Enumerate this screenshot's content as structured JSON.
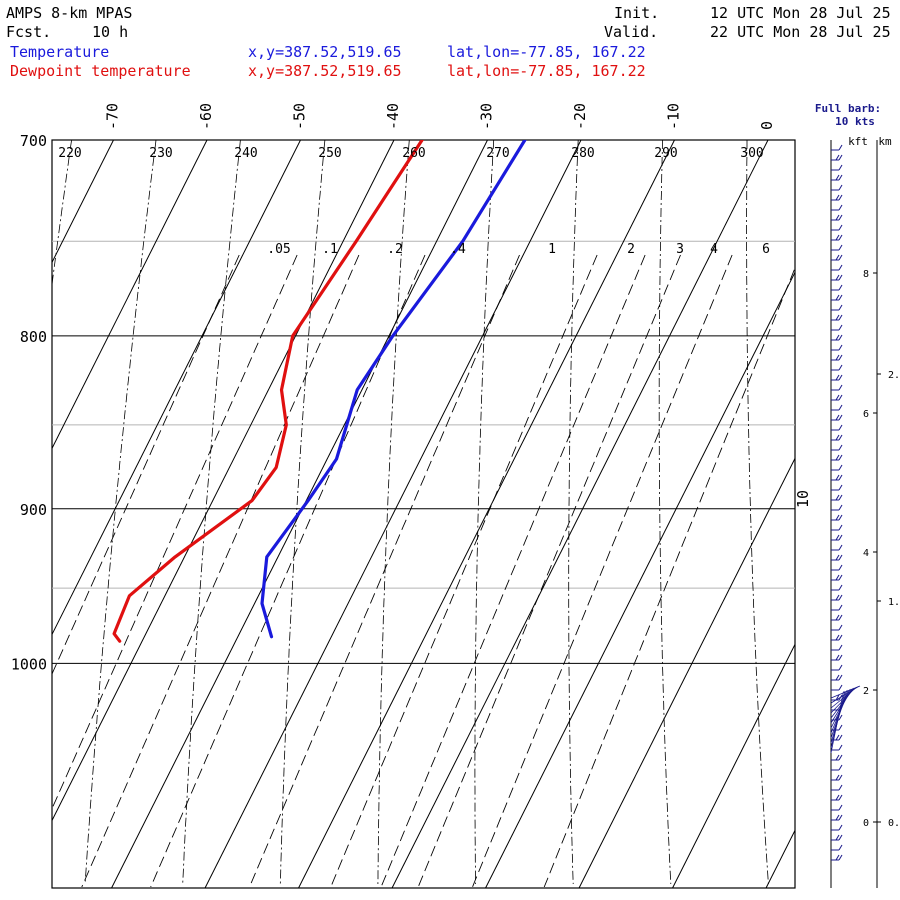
{
  "header": {
    "model": "AMPS 8-km MPAS",
    "init_label": "Init.",
    "init_value": "12 UTC Mon 28 Jul 25",
    "fcst_label": "Fcst.",
    "fcst_value": "10 h",
    "valid_label": "Valid.",
    "valid_value": "22 UTC Mon 28 Jul 25"
  },
  "legend": [
    {
      "name": "Temperature",
      "xy": "x,y=387.52,519.65",
      "latlon": "lat,lon=-77.85, 167.22",
      "color": "#1a1adc"
    },
    {
      "name": "Dewpoint temperature",
      "xy": "x,y=387.52,519.65",
      "latlon": "lat,lon=-77.85, 167.22",
      "color": "#e01010"
    }
  ],
  "barb_header": {
    "line1": "Full barb:",
    "line2": "10 kts",
    "kft": "kft",
    "km": "km"
  },
  "chart_data": {
    "type": "line",
    "subtype": "skew-T log-p diagram",
    "y_axis": {
      "quantity": "pressure (hPa)",
      "scale": "log",
      "range": [
        1040,
        700
      ],
      "ticks": [
        700,
        800,
        900,
        1000
      ],
      "grid_extra": [
        750,
        850,
        950
      ]
    },
    "x_axis": {
      "quantity": "temperature (°C)",
      "skewed": true,
      "tick_labels": [
        -70,
        -60,
        -50,
        -40,
        -30,
        -20,
        -10,
        0
      ]
    },
    "dry_adiabats_K": [
      220,
      230,
      240,
      250,
      260,
      270,
      280,
      290,
      300
    ],
    "mixing_ratio_labels": [
      ".05",
      ".1",
      ".2",
      ".4",
      "1",
      "2",
      "3",
      "4",
      "6",
      "10"
    ],
    "series": [
      {
        "name": "Temperature",
        "color": "#1a1adc",
        "points": [
          [
            700,
            -26.0
          ],
          [
            750,
            -27.2
          ],
          [
            800,
            -29.6
          ],
          [
            830,
            -30.5
          ],
          [
            870,
            -29.0
          ],
          [
            895,
            -29.8
          ],
          [
            930,
            -31.2
          ],
          [
            960,
            -29.2
          ],
          [
            982,
            -26.4
          ]
        ]
      },
      {
        "name": "Dewpoint temperature",
        "color": "#e01010",
        "points": [
          [
            700,
            -37.0
          ],
          [
            750,
            -38.6
          ],
          [
            800,
            -40.3
          ],
          [
            830,
            -38.6
          ],
          [
            850,
            -36.2
          ],
          [
            875,
            -35.0
          ],
          [
            895,
            -35.8
          ],
          [
            930,
            -41.0
          ],
          [
            955,
            -43.8
          ],
          [
            980,
            -43.4
          ],
          [
            985,
            -42.4
          ]
        ]
      }
    ],
    "height_axis": {
      "kft_ticks": [
        "2",
        "4",
        "6",
        "8"
      ],
      "km_ticks": [
        "0.",
        "1.",
        "2."
      ]
    }
  }
}
